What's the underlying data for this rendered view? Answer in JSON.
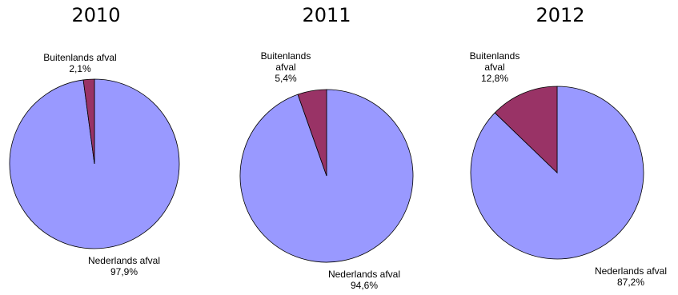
{
  "chart_data": [
    {
      "type": "pie",
      "title": "2010",
      "colors": {
        "Nederlands afval": "#9999ff",
        "Buitenlands afval": "#993366"
      },
      "slices": [
        {
          "label": "Nederlands afval",
          "label_lines": [
            "Nederlands afval"
          ],
          "value": 97.9,
          "display": "97,9%"
        },
        {
          "label": "Buitenlands afval",
          "label_lines": [
            "Buitenlands afval"
          ],
          "value": 2.1,
          "display": "2,1%"
        }
      ]
    },
    {
      "type": "pie",
      "title": "2011",
      "colors": {
        "Nederlands afval": "#9999ff",
        "Buitenlands afval": "#993366"
      },
      "slices": [
        {
          "label": "Nederlands afval",
          "label_lines": [
            "Nederlands afval"
          ],
          "value": 94.6,
          "display": "94,6%"
        },
        {
          "label": "Buitenlands afval",
          "label_lines": [
            "Buitenlands",
            "afval"
          ],
          "value": 5.4,
          "display": "5,4%"
        }
      ]
    },
    {
      "type": "pie",
      "title": "2012",
      "colors": {
        "Nederlands afval": "#9999ff",
        "Buitenlands afval": "#993366"
      },
      "slices": [
        {
          "label": "Nederlands afval",
          "label_lines": [
            "Nederlands afval"
          ],
          "value": 87.2,
          "display": "87,2%"
        },
        {
          "label": "Buitenlands afval",
          "label_lines": [
            "Buitenlands",
            "afval"
          ],
          "value": 12.8,
          "display": "12,8%"
        }
      ]
    }
  ]
}
